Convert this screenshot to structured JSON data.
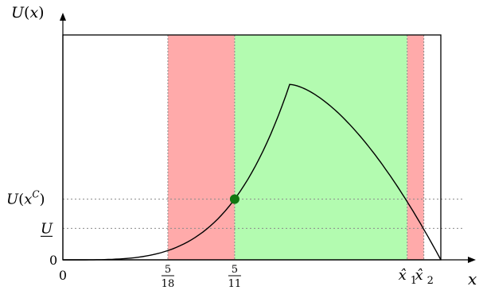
{
  "chart_data": {
    "type": "line",
    "title": "",
    "xlabel": "x",
    "ylabel": "U(x)",
    "xlim": [
      0,
      1
    ],
    "ylim": [
      0,
      1
    ],
    "curve_peak": {
      "x": 0.6,
      "y": 0.78
    },
    "x_ticks": [
      {
        "value": 0,
        "num": "0",
        "den": ""
      },
      {
        "value": 0.2778,
        "num": "5",
        "den": "18"
      },
      {
        "value": 0.4545,
        "num": "5",
        "den": "11"
      },
      {
        "value": 0.911,
        "main": "x̂",
        "sub": "1"
      },
      {
        "value": 0.955,
        "main": "x̂",
        "sub": "2"
      }
    ],
    "y_ticks": [
      {
        "value": 0,
        "label": "0"
      },
      {
        "value": 0.14,
        "label": "U",
        "underline": true
      },
      {
        "value": 0.27,
        "label": "U(x",
        "sup": "C",
        "close": ")"
      }
    ],
    "regions": [
      {
        "from": 0.2778,
        "to": 0.4545,
        "color": "#ffaaaa"
      },
      {
        "from": 0.4545,
        "to": 0.911,
        "color": "#b3fbb0"
      },
      {
        "from": 0.911,
        "to": 0.955,
        "color": "#ffaaaa"
      }
    ],
    "marker": {
      "x": 0.4545,
      "y": 0.27,
      "color": "#117711"
    },
    "grid": false
  }
}
